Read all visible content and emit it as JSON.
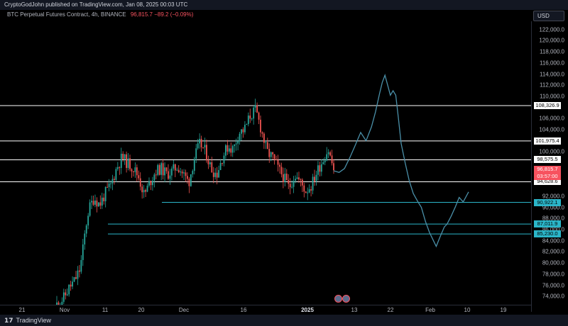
{
  "header": {
    "publish_line": "CryptoGodJohn published on TradingView.com, Jan 08, 2025 00:03 UTC",
    "symbol": "BTC Perpetual Futures Contract, 4h, BINANCE",
    "price_change": "96,815.7 −89.2 (−0.09%)",
    "currency": "USD"
  },
  "footer": {
    "logo_text": "TradingView"
  },
  "colors": {
    "background": "#000000",
    "candle_up": "#26a69a",
    "candle_down": "#ef5350",
    "projection": "#4a8fa8",
    "level_white": "#ffffff",
    "level_cyan": "#2bb6c9",
    "current_price": "#f7525f"
  },
  "icons": [
    "tradingview-logo-icon",
    "event-flag-icon"
  ],
  "chart_data": {
    "type": "candlestick",
    "title": "",
    "y_axis": {
      "range": [
        72500,
        123500
      ],
      "ticks": [
        "122,000.0",
        "120,000.0",
        "118,000.0",
        "116,000.0",
        "114,000.0",
        "112,000.0",
        "110,000.0",
        "106,000.0",
        "104,000.0",
        "100,000.0",
        "92,000.0",
        "90,000.0",
        "88,000.0",
        "86,000.0",
        "84,000.0",
        "82,000.0",
        "80,000.0",
        "78,000.0",
        "76,000.0",
        "74,000.0"
      ]
    },
    "x_axis": {
      "ticks": [
        {
          "label": "21",
          "bold": false
        },
        {
          "label": "Nov",
          "bold": false
        },
        {
          "label": "11",
          "bold": false
        },
        {
          "label": "20",
          "bold": false
        },
        {
          "label": "Dec",
          "bold": false
        },
        {
          "label": "16",
          "bold": false
        },
        {
          "label": "2025",
          "bold": true
        },
        {
          "label": "13",
          "bold": false
        },
        {
          "label": "22",
          "bold": false
        },
        {
          "label": "Feb",
          "bold": false
        },
        {
          "label": "10",
          "bold": false
        },
        {
          "label": "19",
          "bold": false
        }
      ]
    },
    "levels_white": [
      "108,326.9",
      "101,975.4",
      "98,575.5",
      "94,628.6"
    ],
    "levels_cyan": [
      "90,922.1",
      "87,011.9",
      "85,230.0"
    ],
    "current_price": {
      "price": "96,815.7",
      "countdown": "03:57:00"
    },
    "price_path": [
      {
        "t": 0.0,
        "p": 72300
      },
      {
        "t": 0.03,
        "p": 73600
      },
      {
        "t": 0.05,
        "p": 75500
      },
      {
        "t": 0.07,
        "p": 76800
      },
      {
        "t": 0.09,
        "p": 79000
      },
      {
        "t": 0.1,
        "p": 82500
      },
      {
        "t": 0.11,
        "p": 86500
      },
      {
        "t": 0.12,
        "p": 89500
      },
      {
        "t": 0.14,
        "p": 91800
      },
      {
        "t": 0.16,
        "p": 90500
      },
      {
        "t": 0.18,
        "p": 92500
      },
      {
        "t": 0.2,
        "p": 94000
      },
      {
        "t": 0.22,
        "p": 97000
      },
      {
        "t": 0.24,
        "p": 99000
      },
      {
        "t": 0.26,
        "p": 98000
      },
      {
        "t": 0.28,
        "p": 97200
      },
      {
        "t": 0.3,
        "p": 95500
      },
      {
        "t": 0.32,
        "p": 92200
      },
      {
        "t": 0.34,
        "p": 94500
      },
      {
        "t": 0.36,
        "p": 96500
      },
      {
        "t": 0.38,
        "p": 97000
      },
      {
        "t": 0.4,
        "p": 96000
      },
      {
        "t": 0.42,
        "p": 96500
      },
      {
        "t": 0.44,
        "p": 97500
      },
      {
        "t": 0.46,
        "p": 96000
      },
      {
        "t": 0.48,
        "p": 94500
      },
      {
        "t": 0.5,
        "p": 99000
      },
      {
        "t": 0.52,
        "p": 101500
      },
      {
        "t": 0.54,
        "p": 100000
      },
      {
        "t": 0.56,
        "p": 97000
      },
      {
        "t": 0.58,
        "p": 96000
      },
      {
        "t": 0.6,
        "p": 99000
      },
      {
        "t": 0.62,
        "p": 101000
      },
      {
        "t": 0.64,
        "p": 100500
      },
      {
        "t": 0.66,
        "p": 103500
      },
      {
        "t": 0.68,
        "p": 104000
      },
      {
        "t": 0.7,
        "p": 106500
      },
      {
        "t": 0.72,
        "p": 107500
      },
      {
        "t": 0.74,
        "p": 104000
      },
      {
        "t": 0.76,
        "p": 100000
      },
      {
        "t": 0.78,
        "p": 99000
      },
      {
        "t": 0.8,
        "p": 97000
      },
      {
        "t": 0.82,
        "p": 95500
      },
      {
        "t": 0.84,
        "p": 93500
      },
      {
        "t": 0.86,
        "p": 96000
      },
      {
        "t": 0.88,
        "p": 94500
      },
      {
        "t": 0.9,
        "p": 93000
      },
      {
        "t": 0.92,
        "p": 94000
      },
      {
        "t": 0.94,
        "p": 96500
      },
      {
        "t": 0.96,
        "p": 98500
      },
      {
        "t": 0.98,
        "p": 100500
      },
      {
        "t": 1.0,
        "p": 96800
      }
    ],
    "projection": [
      {
        "t": 0.0,
        "p": 96600
      },
      {
        "t": 0.04,
        "p": 96300
      },
      {
        "t": 0.08,
        "p": 97000
      },
      {
        "t": 0.12,
        "p": 99000
      },
      {
        "t": 0.16,
        "p": 101200
      },
      {
        "t": 0.2,
        "p": 103500
      },
      {
        "t": 0.24,
        "p": 102000
      },
      {
        "t": 0.28,
        "p": 104500
      },
      {
        "t": 0.31,
        "p": 107200
      },
      {
        "t": 0.34,
        "p": 110500
      },
      {
        "t": 0.36,
        "p": 112500
      },
      {
        "t": 0.38,
        "p": 113800
      },
      {
        "t": 0.4,
        "p": 112000
      },
      {
        "t": 0.42,
        "p": 110200
      },
      {
        "t": 0.44,
        "p": 111000
      },
      {
        "t": 0.46,
        "p": 110200
      },
      {
        "t": 0.48,
        "p": 106000
      },
      {
        "t": 0.5,
        "p": 101500
      },
      {
        "t": 0.53,
        "p": 98000
      },
      {
        "t": 0.56,
        "p": 94800
      },
      {
        "t": 0.59,
        "p": 92500
      },
      {
        "t": 0.62,
        "p": 91200
      },
      {
        "t": 0.65,
        "p": 90000
      },
      {
        "t": 0.68,
        "p": 87500
      },
      {
        "t": 0.71,
        "p": 85500
      },
      {
        "t": 0.74,
        "p": 84000
      },
      {
        "t": 0.76,
        "p": 83000
      },
      {
        "t": 0.79,
        "p": 84800
      },
      {
        "t": 0.82,
        "p": 86500
      },
      {
        "t": 0.84,
        "p": 87000
      },
      {
        "t": 0.87,
        "p": 88400
      },
      {
        "t": 0.9,
        "p": 90000
      },
      {
        "t": 0.93,
        "p": 91800
      },
      {
        "t": 0.96,
        "p": 91000
      },
      {
        "t": 1.0,
        "p": 92800
      }
    ]
  }
}
